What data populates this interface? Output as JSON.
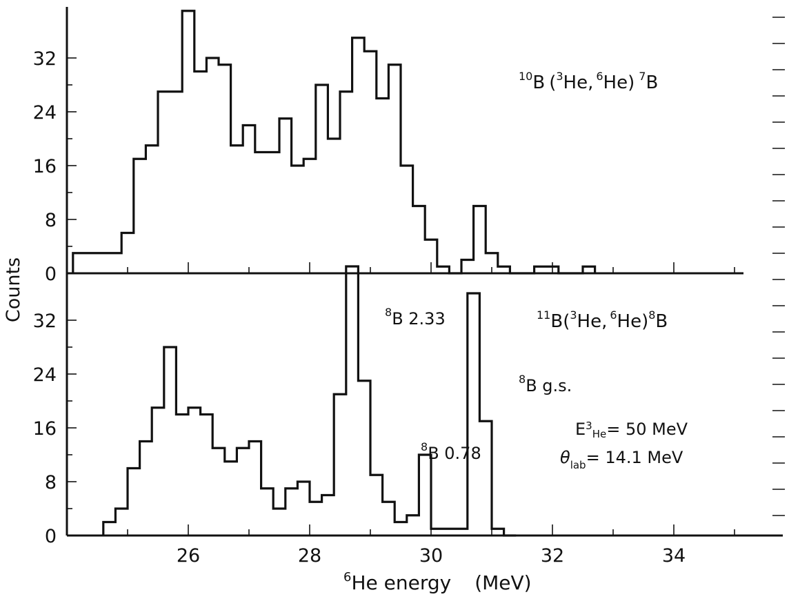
{
  "chart_data": [
    {
      "type": "histogram",
      "panel": "top",
      "bin_width_mev": 0.2,
      "xlim": [
        24.0,
        35.8
      ],
      "ylim": [
        0,
        40
      ],
      "yticks": [
        0,
        8,
        16,
        24,
        32
      ],
      "ylabel": "Counts",
      "reaction_label": {
        "target_mass": "10",
        "t": "B",
        "p1": "3",
        "p2": "He,",
        "p3": "6",
        "p4": "He)",
        "p5": "7",
        "p6": "B"
      },
      "bins": [
        {
          "x": 24.1,
          "y": 3
        },
        {
          "x": 24.3,
          "y": 3
        },
        {
          "x": 24.5,
          "y": 3
        },
        {
          "x": 24.7,
          "y": 3
        },
        {
          "x": 24.9,
          "y": 6
        },
        {
          "x": 25.1,
          "y": 17
        },
        {
          "x": 25.3,
          "y": 19
        },
        {
          "x": 25.5,
          "y": 27
        },
        {
          "x": 25.7,
          "y": 27
        },
        {
          "x": 25.9,
          "y": 39
        },
        {
          "x": 26.1,
          "y": 30
        },
        {
          "x": 26.3,
          "y": 32
        },
        {
          "x": 26.5,
          "y": 31
        },
        {
          "x": 26.7,
          "y": 19
        },
        {
          "x": 26.9,
          "y": 22
        },
        {
          "x": 27.1,
          "y": 18
        },
        {
          "x": 27.3,
          "y": 18
        },
        {
          "x": 27.5,
          "y": 23
        },
        {
          "x": 27.7,
          "y": 16
        },
        {
          "x": 27.9,
          "y": 17
        },
        {
          "x": 28.1,
          "y": 28
        },
        {
          "x": 28.3,
          "y": 20
        },
        {
          "x": 28.5,
          "y": 27
        },
        {
          "x": 28.7,
          "y": 35
        },
        {
          "x": 28.9,
          "y": 33
        },
        {
          "x": 29.1,
          "y": 26
        },
        {
          "x": 29.3,
          "y": 31
        },
        {
          "x": 29.5,
          "y": 16
        },
        {
          "x": 29.7,
          "y": 10
        },
        {
          "x": 29.9,
          "y": 5
        },
        {
          "x": 30.1,
          "y": 1
        },
        {
          "x": 30.3,
          "y": 0
        },
        {
          "x": 30.5,
          "y": 2
        },
        {
          "x": 30.7,
          "y": 10
        },
        {
          "x": 30.9,
          "y": 3
        },
        {
          "x": 31.1,
          "y": 1
        },
        {
          "x": 31.3,
          "y": 0
        },
        {
          "x": 31.5,
          "y": 0
        },
        {
          "x": 31.7,
          "y": 1
        },
        {
          "x": 31.9,
          "y": 1
        },
        {
          "x": 32.1,
          "y": 0
        },
        {
          "x": 32.3,
          "y": 0
        },
        {
          "x": 32.5,
          "y": 1
        }
      ]
    },
    {
      "type": "histogram",
      "panel": "bottom",
      "bin_width_mev": 0.2,
      "xlim": [
        24.0,
        35.8
      ],
      "ylim": [
        0,
        40
      ],
      "xticks": [
        26,
        28,
        30,
        32,
        34
      ],
      "yticks": [
        0,
        8,
        16,
        24,
        32
      ],
      "xlabel": {
        "sup": "6",
        "main": "He  energy",
        "unit": "(MeV)"
      },
      "ylabel": "Counts",
      "reaction_label": {
        "target_mass": "11",
        "t": "B(",
        "p1": "3",
        "p2": "He,",
        "p3": "6",
        "p4": "He)",
        "p5": "8",
        "p6": "B"
      },
      "annotations": {
        "peak_233": {
          "sup": "8",
          "main": "B  2.33"
        },
        "peak_078": {
          "sup": "8",
          "main": "B  0.78"
        },
        "peak_gs": {
          "sup": "8",
          "main": "B  g.s."
        },
        "beam_energy": {
          "pre": "E",
          "sub1": "3",
          "sub2": "He",
          "post": "= 50 MeV"
        },
        "angle": {
          "pre": "θ",
          "sub": "lab",
          "post": "= 14.1 MeV"
        }
      },
      "bins": [
        {
          "x": 24.6,
          "y": 2
        },
        {
          "x": 24.8,
          "y": 4
        },
        {
          "x": 25.0,
          "y": 10
        },
        {
          "x": 25.2,
          "y": 14
        },
        {
          "x": 25.4,
          "y": 19
        },
        {
          "x": 25.6,
          "y": 28
        },
        {
          "x": 25.8,
          "y": 18
        },
        {
          "x": 26.0,
          "y": 19
        },
        {
          "x": 26.2,
          "y": 18
        },
        {
          "x": 26.4,
          "y": 13
        },
        {
          "x": 26.6,
          "y": 11
        },
        {
          "x": 26.8,
          "y": 13
        },
        {
          "x": 27.0,
          "y": 14
        },
        {
          "x": 27.2,
          "y": 7
        },
        {
          "x": 27.4,
          "y": 4
        },
        {
          "x": 27.6,
          "y": 7
        },
        {
          "x": 27.8,
          "y": 8
        },
        {
          "x": 28.0,
          "y": 5
        },
        {
          "x": 28.2,
          "y": 6
        },
        {
          "x": 28.4,
          "y": 21
        },
        {
          "x": 28.6,
          "y": 40
        },
        {
          "x": 28.8,
          "y": 23
        },
        {
          "x": 29.0,
          "y": 9
        },
        {
          "x": 29.2,
          "y": 5
        },
        {
          "x": 29.4,
          "y": 2
        },
        {
          "x": 29.6,
          "y": 3
        },
        {
          "x": 29.8,
          "y": 12
        },
        {
          "x": 30.0,
          "y": 1
        },
        {
          "x": 30.2,
          "y": 1
        },
        {
          "x": 30.4,
          "y": 1
        },
        {
          "x": 30.6,
          "y": 36
        },
        {
          "x": 30.8,
          "y": 17
        },
        {
          "x": 31.0,
          "y": 1
        },
        {
          "x": 31.2,
          "y": 0
        }
      ]
    }
  ]
}
